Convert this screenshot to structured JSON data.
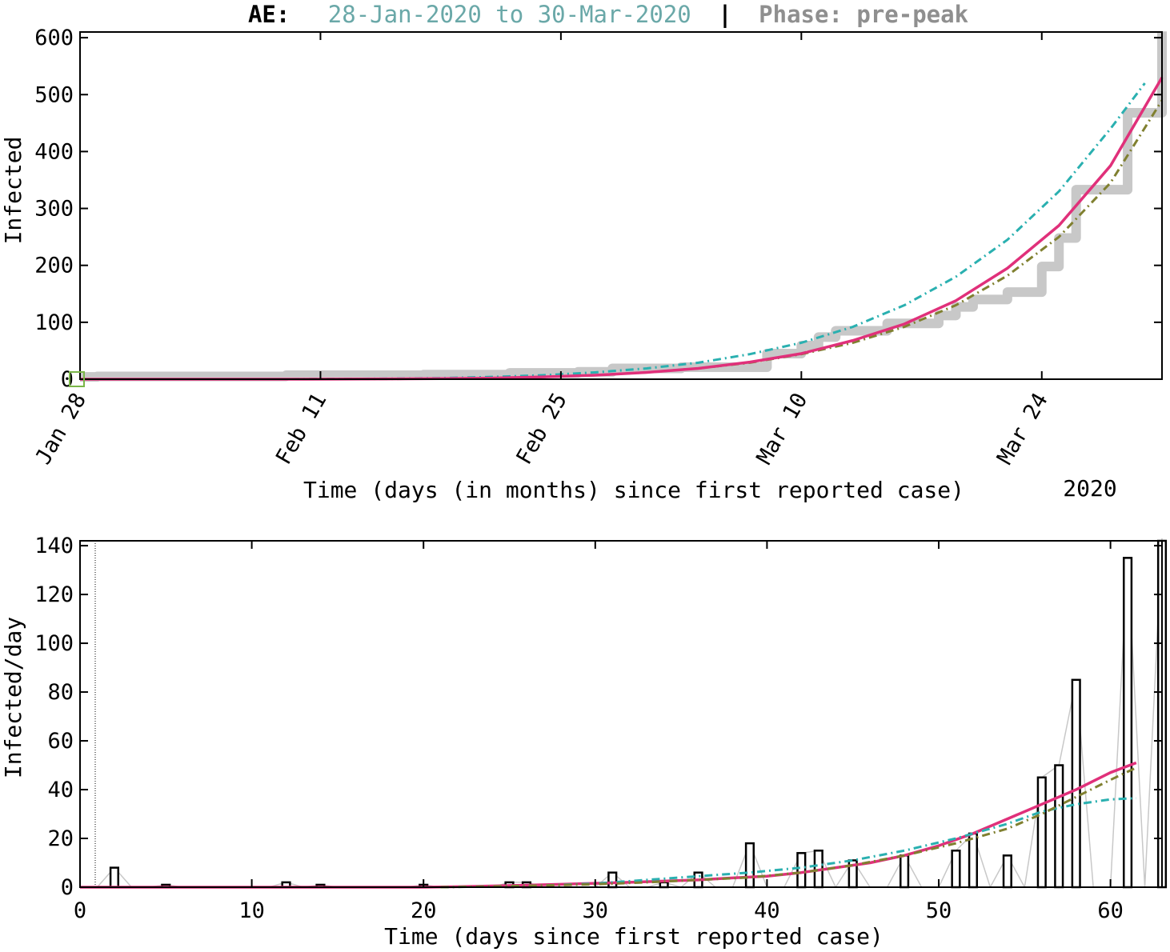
{
  "header": {
    "country": "AE:",
    "range": "28-Jan-2020 to  30-Mar-2020",
    "separator": "|",
    "phase": "Phase: pre-peak",
    "colors": {
      "country": "#000000",
      "range": "#6aa8a8",
      "separator": "#000000",
      "phase": "#8f8f8f"
    }
  },
  "chart_data": [
    {
      "type": "line",
      "xlabel": "Time (days (in months) since first reported case)",
      "ylabel": "Infected",
      "year_label": "2020",
      "xlim": [
        0,
        63
      ],
      "ylim": [
        0,
        610
      ],
      "x_ticks": [
        {
          "day": 0,
          "label": "Jan 28"
        },
        {
          "day": 14,
          "label": "Feb 11"
        },
        {
          "day": 28,
          "label": "Feb 25"
        },
        {
          "day": 42,
          "label": "Mar 10"
        },
        {
          "day": 56,
          "label": "Mar 24"
        }
      ],
      "y_ticks": [
        0,
        100,
        200,
        300,
        400,
        500,
        600
      ],
      "grid": false,
      "series": [
        {
          "style": "thick-gray-step",
          "color": "#c8c8c8",
          "x": [
            0,
            1,
            11,
            12,
            19,
            20,
            24,
            25,
            28,
            29,
            30,
            31,
            34,
            35,
            39,
            40,
            41,
            42,
            43,
            44,
            45,
            46,
            47,
            48,
            49,
            50,
            51,
            52,
            53,
            54,
            55,
            56,
            57,
            58,
            59,
            60,
            61,
            62,
            63
          ],
          "values": [
            4,
            5,
            5,
            7,
            7,
            8,
            8,
            11,
            11,
            13,
            13,
            19,
            19,
            21,
            21,
            45,
            45,
            59,
            74,
            85,
            85,
            85,
            98,
            98,
            98,
            112,
            127,
            140,
            140,
            153,
            153,
            198,
            248,
            333,
            333,
            333,
            468,
            468,
            611
          ]
        },
        {
          "style": "dashdot",
          "color": "#2ab0b0",
          "x": [
            0,
            3,
            6,
            9,
            12,
            15,
            18,
            21,
            24,
            27,
            30,
            33,
            36,
            39,
            42,
            45,
            48,
            51,
            54,
            57,
            60,
            62
          ],
          "values": [
            0,
            0,
            0,
            0,
            0,
            0.5,
            1,
            2,
            4,
            7,
            12,
            19,
            29,
            44,
            64,
            92,
            130,
            180,
            245,
            330,
            440,
            520
          ]
        },
        {
          "style": "dashdot",
          "color": "#808030",
          "x": [
            0,
            3,
            6,
            9,
            12,
            15,
            18,
            21,
            24,
            27,
            30,
            33,
            36,
            39,
            42,
            45,
            48,
            51,
            54,
            57,
            60,
            63
          ],
          "values": [
            0,
            0,
            0,
            0,
            0,
            0.2,
            0.5,
            1,
            2,
            4,
            7,
            12,
            19,
            29,
            44,
            64,
            92,
            130,
            182,
            250,
            345,
            490
          ]
        },
        {
          "style": "solid",
          "color": "#e0307a",
          "x": [
            0,
            3,
            6,
            9,
            12,
            15,
            18,
            21,
            24,
            27,
            30,
            33,
            36,
            39,
            42,
            45,
            48,
            51,
            54,
            57,
            60,
            63
          ],
          "values": [
            0,
            0,
            0,
            0,
            0,
            0.2,
            0.5,
            1,
            2,
            4,
            7,
            12,
            19,
            30,
            45,
            68,
            97,
            138,
            195,
            270,
            375,
            530
          ]
        }
      ]
    },
    {
      "type": "bar",
      "xlabel": "Time (days since first reported case)",
      "ylabel": "Infected/day",
      "xlim": [
        0,
        63
      ],
      "ylim": [
        0,
        142
      ],
      "x_ticks": [
        0,
        10,
        20,
        30,
        40,
        50,
        60
      ],
      "y_ticks": [
        0,
        20,
        40,
        60,
        80,
        100,
        120,
        140
      ],
      "grid": false,
      "bars": {
        "x": [
          2,
          5,
          12,
          14,
          20,
          25,
          26,
          31,
          34,
          36,
          39,
          42,
          43,
          45,
          48,
          51,
          52,
          54,
          56,
          57,
          58,
          61,
          63
        ],
        "values": [
          8,
          1,
          2,
          1,
          1,
          2,
          2,
          6,
          2,
          6,
          18,
          14,
          15,
          11,
          13,
          15,
          22,
          13,
          45,
          50,
          85,
          135,
          143
        ]
      },
      "series": [
        {
          "style": "solid",
          "color": "#e0307a",
          "x": [
            0,
            10,
            20,
            22,
            24,
            26,
            28,
            30,
            32,
            34,
            36,
            38,
            40,
            42,
            44,
            46,
            48,
            50,
            52,
            54,
            56,
            58,
            60,
            61.5
          ],
          "values": [
            0,
            0,
            0,
            0.2,
            0.5,
            0.8,
            1.2,
            1.6,
            2,
            2.5,
            3,
            3.8,
            4.5,
            6,
            8,
            10,
            13,
            17,
            22,
            28,
            34,
            40,
            47,
            51
          ]
        },
        {
          "style": "dashdot",
          "color": "#2ab0b0",
          "x": [
            21,
            24,
            27,
            30,
            33,
            36,
            39,
            42,
            45,
            48,
            51,
            54,
            56,
            58,
            60,
            61.5
          ],
          "values": [
            0,
            0.3,
            0.7,
            1.5,
            3,
            4.5,
            6,
            8,
            11,
            15,
            20,
            26,
            31,
            34,
            36,
            36.5
          ]
        },
        {
          "style": "dashdot",
          "color": "#808030",
          "x": [
            21,
            24,
            27,
            30,
            33,
            36,
            39,
            42,
            45,
            48,
            51,
            54,
            56,
            58,
            60,
            61.5
          ],
          "values": [
            0,
            0.3,
            0.7,
            1.2,
            2,
            3,
            4,
            6,
            9,
            13,
            18,
            24,
            30,
            37,
            44,
            49
          ]
        }
      ]
    }
  ]
}
